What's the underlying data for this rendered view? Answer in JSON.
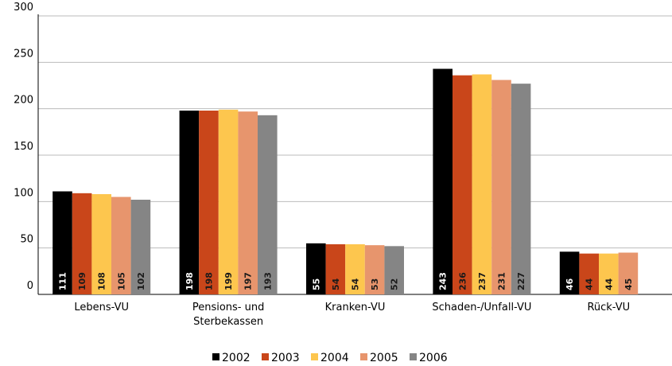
{
  "chart_data": {
    "type": "bar",
    "categories": [
      "Lebens-VU",
      "Pensions- und Sterbekassen",
      "Kranken-VU",
      "Schaden-/Unfall-VU",
      "Rück-VU"
    ],
    "series": [
      {
        "name": "2002",
        "color": "#000000",
        "label_color": "#ffffff",
        "values": [
          111,
          198,
          55,
          243,
          46
        ]
      },
      {
        "name": "2003",
        "color": "#c9461a",
        "label_color": "#1a1a1a",
        "values": [
          109,
          198,
          54,
          236,
          44
        ]
      },
      {
        "name": "2004",
        "color": "#fdc64e",
        "label_color": "#1a1a1a",
        "values": [
          108,
          199,
          54,
          237,
          44
        ]
      },
      {
        "name": "2005",
        "color": "#e7956d",
        "label_color": "#1a1a1a",
        "values": [
          105,
          197,
          53,
          231,
          45
        ]
      },
      {
        "name": "2006",
        "color": "#858585",
        "label_color": "#1a1a1a",
        "values": [
          102,
          193,
          52,
          227,
          null
        ]
      }
    ],
    "ylim": [
      0,
      300
    ],
    "yticks": [
      0,
      50,
      100,
      150,
      200,
      250,
      300
    ],
    "grid": true,
    "legend": "bottom"
  }
}
